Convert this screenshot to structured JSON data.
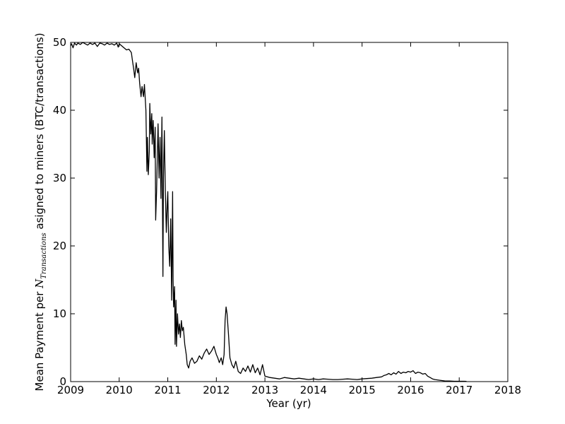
{
  "chart_data": {
    "type": "line",
    "title": "",
    "xlabel": "Year (yr)",
    "ylabel_parts": {
      "before": "Mean Payment per ",
      "var": "N",
      "sub": "Transactions",
      "after": " asigned to miners (BTC/transactions)"
    },
    "xlim": [
      2009,
      2018
    ],
    "ylim": [
      0,
      50
    ],
    "x_ticks": [
      2009,
      2010,
      2011,
      2012,
      2013,
      2014,
      2015,
      2016,
      2017,
      2018
    ],
    "x_tick_labels": [
      "2009",
      "2010",
      "2011",
      "2012",
      "2013",
      "2014",
      "2015",
      "2016",
      "2017",
      "2018"
    ],
    "y_ticks": [
      0,
      10,
      20,
      30,
      40,
      50
    ],
    "y_tick_labels": [
      "0",
      "10",
      "20",
      "30",
      "40",
      "50"
    ],
    "grid": false,
    "line_color": "#000000",
    "series": [
      {
        "x": [
          2009.0,
          2009.02,
          2009.05,
          2009.08,
          2009.12,
          2009.15,
          2009.2,
          2009.25,
          2009.3,
          2009.35,
          2009.4,
          2009.45,
          2009.5,
          2009.55,
          2009.6,
          2009.65,
          2009.7,
          2009.75,
          2009.8,
          2009.85,
          2009.9,
          2009.95,
          2009.98,
          2010.0,
          2010.05,
          2010.1,
          2010.15,
          2010.2,
          2010.25,
          2010.27,
          2010.3,
          2010.32,
          2010.35,
          2010.38,
          2010.4,
          2010.42,
          2010.45,
          2010.47,
          2010.5,
          2010.52,
          2010.55,
          2010.57,
          2010.58,
          2010.6,
          2010.62,
          2010.63,
          2010.65,
          2010.67,
          2010.68,
          2010.7,
          2010.72,
          2010.74,
          2010.75,
          2010.77,
          2010.8,
          2010.82,
          2010.84,
          2010.86,
          2010.88,
          2010.9,
          2010.91,
          2010.93,
          2010.95,
          2010.97,
          2010.99,
          2011.0,
          2011.02,
          2011.04,
          2011.06,
          2011.08,
          2011.1,
          2011.11,
          2011.12,
          2011.14,
          2011.15,
          2011.17,
          2011.18,
          2011.2,
          2011.22,
          2011.24,
          2011.26,
          2011.28,
          2011.3,
          2011.32,
          2011.35,
          2011.38,
          2011.4,
          2011.43,
          2011.46,
          2011.5,
          2011.55,
          2011.6,
          2011.65,
          2011.7,
          2011.75,
          2011.8,
          2011.85,
          2011.9,
          2011.95,
          2012.0,
          2012.03,
          2012.06,
          2012.1,
          2012.13,
          2012.16,
          2012.18,
          2012.2,
          2012.22,
          2012.25,
          2012.28,
          2012.32,
          2012.36,
          2012.4,
          2012.45,
          2012.5,
          2012.55,
          2012.6,
          2012.65,
          2012.7,
          2012.75,
          2012.8,
          2012.85,
          2012.9,
          2012.95,
          2013.0,
          2013.1,
          2013.2,
          2013.3,
          2013.4,
          2013.5,
          2013.6,
          2013.7,
          2013.8,
          2013.9,
          2014.0,
          2014.1,
          2014.2,
          2014.3,
          2014.4,
          2014.5,
          2014.6,
          2014.7,
          2014.8,
          2014.9,
          2015.0,
          2015.1,
          2015.2,
          2015.3,
          2015.4,
          2015.45,
          2015.5,
          2015.55,
          2015.6,
          2015.65,
          2015.7,
          2015.75,
          2015.8,
          2015.85,
          2015.9,
          2015.95,
          2016.0,
          2016.05,
          2016.1,
          2016.15,
          2016.2,
          2016.25,
          2016.3,
          2016.35,
          2016.4,
          2016.45,
          2016.5,
          2016.6,
          2016.7,
          2016.8,
          2016.9,
          2017.0,
          2017.1,
          2017.15
        ],
        "y": [
          49.5,
          49.8,
          49.2,
          49.9,
          49.6,
          49.9,
          49.7,
          50.0,
          49.8,
          49.6,
          49.9,
          49.7,
          49.9,
          49.4,
          49.9,
          49.8,
          49.6,
          49.9,
          49.7,
          49.8,
          49.6,
          49.9,
          49.3,
          49.8,
          49.5,
          49.2,
          48.9,
          49.0,
          48.5,
          47.5,
          46.0,
          44.8,
          47.0,
          45.5,
          46.2,
          44.0,
          42.0,
          43.5,
          42.0,
          43.8,
          40.0,
          31.0,
          36.0,
          30.5,
          34.0,
          41.0,
          36.5,
          39.5,
          35.0,
          38.5,
          33.0,
          37.5,
          23.8,
          28.0,
          38.0,
          30.0,
          36.0,
          27.0,
          39.0,
          15.5,
          30.0,
          37.0,
          28.0,
          22.0,
          26.5,
          28.0,
          20.0,
          17.0,
          24.0,
          12.0,
          28.0,
          15.0,
          11.0,
          14.0,
          5.5,
          12.0,
          5.2,
          10.0,
          7.0,
          8.5,
          6.5,
          9.0,
          7.5,
          8.0,
          5.5,
          4.0,
          2.5,
          2.0,
          3.0,
          3.5,
          2.7,
          3.0,
          3.8,
          3.3,
          4.2,
          4.8,
          4.0,
          4.5,
          5.2,
          4.0,
          3.5,
          2.8,
          3.5,
          2.5,
          4.0,
          9.0,
          11.0,
          10.0,
          7.0,
          3.5,
          2.5,
          2.0,
          3.0,
          1.5,
          1.2,
          2.0,
          1.5,
          2.3,
          1.4,
          2.5,
          1.3,
          2.0,
          1.0,
          2.5,
          0.8,
          0.6,
          0.5,
          0.4,
          0.6,
          0.5,
          0.4,
          0.5,
          0.4,
          0.3,
          0.4,
          0.3,
          0.4,
          0.35,
          0.3,
          0.3,
          0.35,
          0.4,
          0.35,
          0.3,
          0.4,
          0.45,
          0.5,
          0.6,
          0.7,
          0.9,
          1.0,
          1.2,
          1.0,
          1.3,
          1.1,
          1.5,
          1.2,
          1.4,
          1.3,
          1.5,
          1.4,
          1.6,
          1.2,
          1.4,
          1.3,
          1.1,
          1.2,
          0.8,
          0.6,
          0.4,
          0.3,
          0.2,
          0.1,
          0.08,
          0.05,
          0.05,
          0.05,
          0.04
        ]
      }
    ]
  }
}
